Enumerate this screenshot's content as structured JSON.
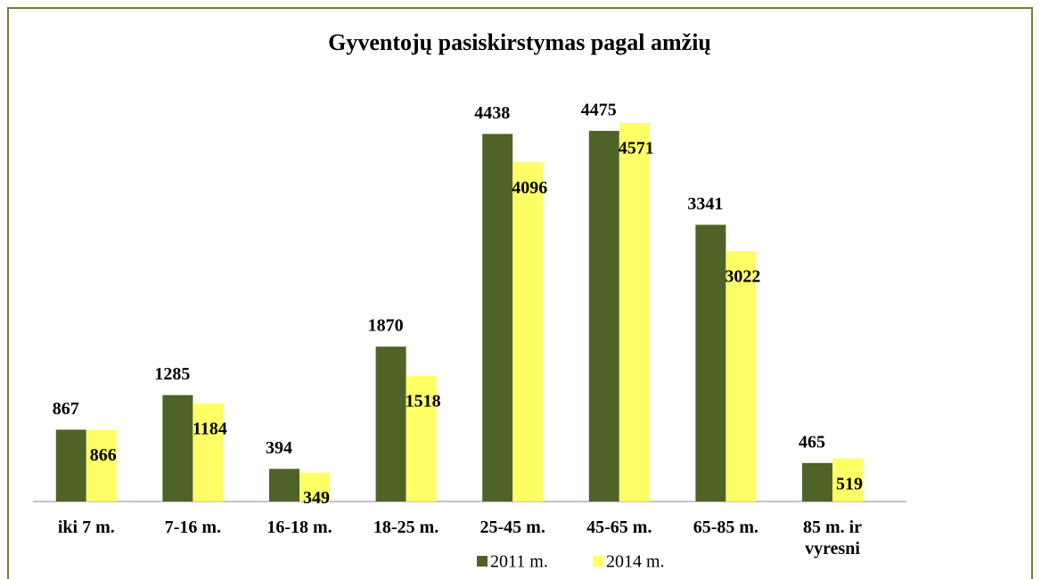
{
  "chart_data": {
    "type": "bar",
    "title": "Gyventojų pasiskirstymas pagal amžių",
    "categories": [
      "iki 7 m.",
      "7-16 m.",
      "16-18 m.",
      "18-25 m.",
      "25-45 m.",
      "45-65 m.",
      "65-85 m.",
      "85 m. ir vyresni"
    ],
    "series": [
      {
        "name": "2011 m.",
        "color": "#4f6228",
        "values": [
          867,
          1285,
          394,
          1870,
          4438,
          4475,
          3341,
          465
        ]
      },
      {
        "name": "2014 m.",
        "color": "#ffff66",
        "values": [
          866,
          1184,
          349,
          1518,
          4096,
          4571,
          3022,
          519
        ]
      }
    ],
    "legend": "bottom"
  }
}
